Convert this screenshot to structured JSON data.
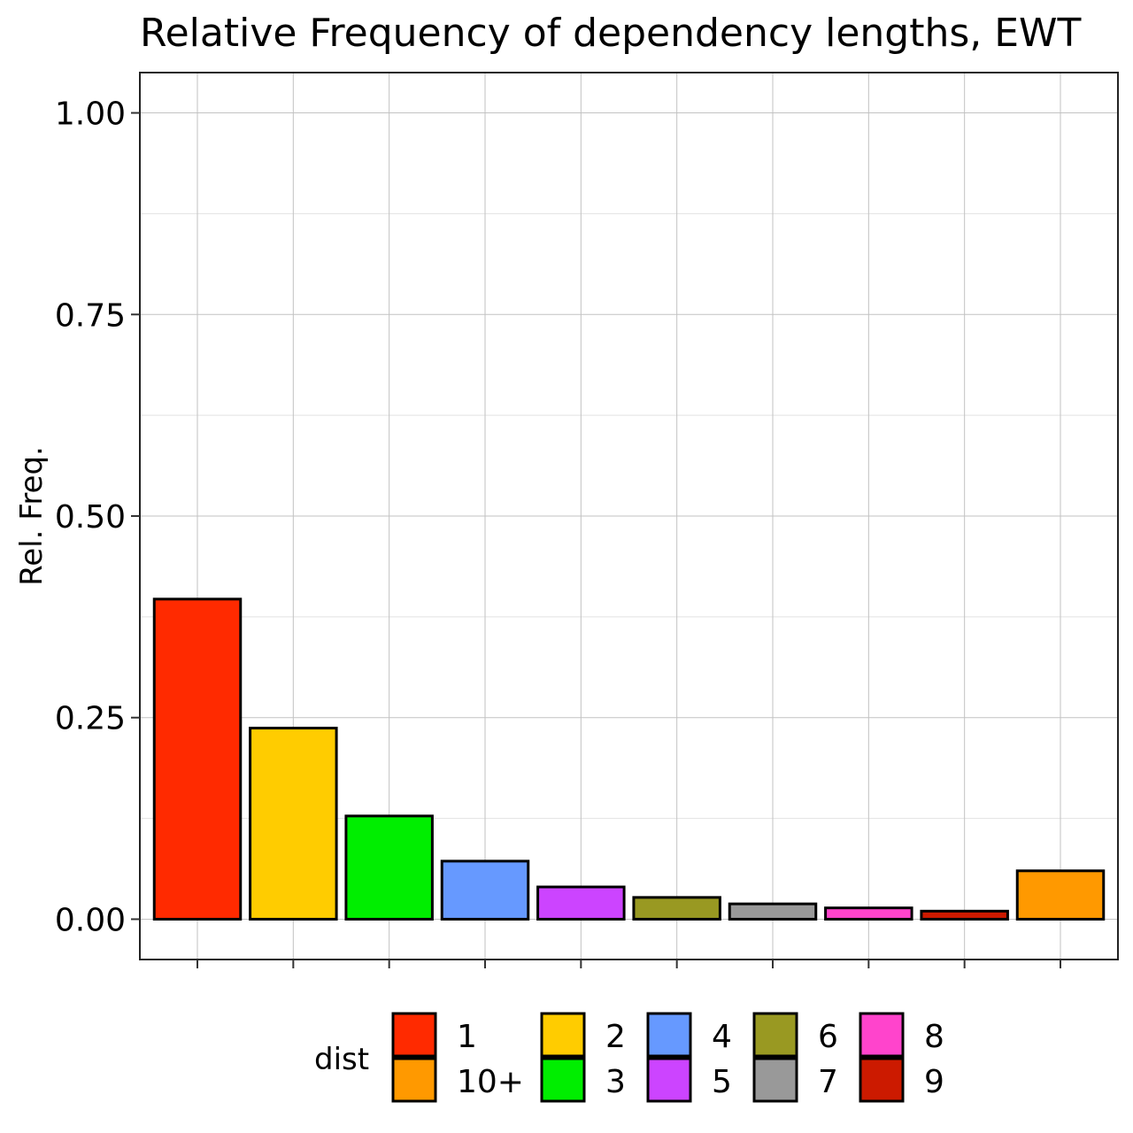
{
  "chart_data": {
    "type": "bar",
    "title": "Relative Frequency of dependency lengths, EWT",
    "xlabel": "",
    "ylabel": "Rel. Freq.",
    "ylim": [
      -0.05,
      1.05
    ],
    "yticks": [
      0.0,
      0.25,
      0.5,
      0.75,
      1.0
    ],
    "ytick_labels": [
      "0.00",
      "0.25",
      "0.50",
      "0.75",
      "1.00"
    ],
    "grid": true,
    "categories": [
      "1",
      "2",
      "3",
      "4",
      "5",
      "6",
      "7",
      "8",
      "9",
      "10+"
    ],
    "values": [
      0.397,
      0.237,
      0.128,
      0.072,
      0.04,
      0.027,
      0.019,
      0.014,
      0.01,
      0.06
    ],
    "colors": [
      "#FF2A00",
      "#FFCC00",
      "#00EE00",
      "#6699FF",
      "#CC44FF",
      "#999922",
      "#999999",
      "#FF44CC",
      "#CC1A00",
      "#FF9900"
    ],
    "legend": {
      "title": "dist",
      "position": "bottom",
      "entries": [
        {
          "label": "1",
          "color": "#FF2A00"
        },
        {
          "label": "10+",
          "color": "#FF9900"
        },
        {
          "label": "2",
          "color": "#FFCC00"
        },
        {
          "label": "3",
          "color": "#00EE00"
        },
        {
          "label": "4",
          "color": "#6699FF"
        },
        {
          "label": "5",
          "color": "#CC44FF"
        },
        {
          "label": "6",
          "color": "#999922"
        },
        {
          "label": "7",
          "color": "#999999"
        },
        {
          "label": "8",
          "color": "#FF44CC"
        },
        {
          "label": "9",
          "color": "#CC1A00"
        }
      ]
    }
  }
}
